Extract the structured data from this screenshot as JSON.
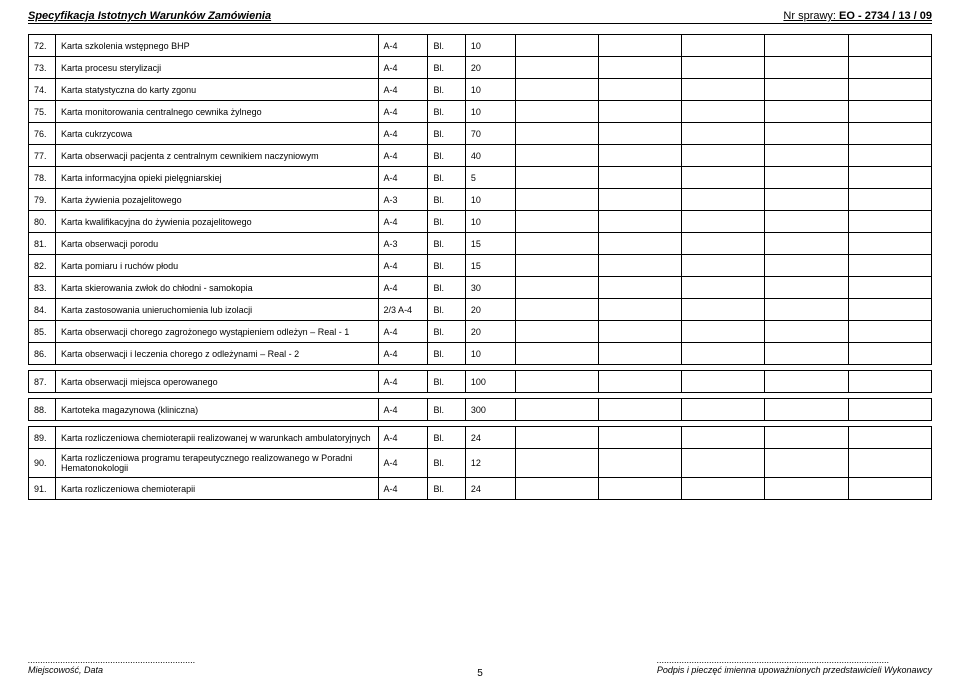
{
  "header": {
    "left": "Specyfikacja Istotnych Warunków Zamówienia",
    "right_label": "Nr sprawy:",
    "right_value": "EO - 2734 /  13  / 09"
  },
  "rows": [
    {
      "num": "72.",
      "desc": "Karta szkolenia wstępnego BHP",
      "fmt": "A-4",
      "bl": "Bl.",
      "qty": "10"
    },
    {
      "num": "73.",
      "desc": "Karta procesu sterylizacji",
      "fmt": "A-4",
      "bl": "Bl.",
      "qty": "20"
    },
    {
      "num": "74.",
      "desc": "Karta statystyczna do karty zgonu",
      "fmt": "A-4",
      "bl": "Bl.",
      "qty": "10"
    },
    {
      "num": "75.",
      "desc": "Karta monitorowania centralnego cewnika żylnego",
      "fmt": "A-4",
      "bl": "Bl.",
      "qty": "10"
    },
    {
      "num": "76.",
      "desc": "Karta cukrzycowa",
      "fmt": "A-4",
      "bl": "Bl.",
      "qty": "70"
    },
    {
      "num": "77.",
      "desc": "Karta obserwacji pacjenta z centralnym cewnikiem naczyniowym",
      "fmt": "A-4",
      "bl": "Bl.",
      "qty": "40"
    },
    {
      "num": "78.",
      "desc": "Karta informacyjna opieki pielęgniarskiej",
      "fmt": "A-4",
      "bl": "Bl.",
      "qty": "5"
    },
    {
      "num": "79.",
      "desc": "Karta żywienia pozajelitowego",
      "fmt": "A-3",
      "bl": "Bl.",
      "qty": "10"
    },
    {
      "num": "80.",
      "desc": "Karta kwalifikacyjna do żywienia pozajelitowego",
      "fmt": "A-4",
      "bl": "Bl.",
      "qty": "10"
    },
    {
      "num": "81.",
      "desc": "Karta obserwacji porodu",
      "fmt": "A-3",
      "bl": "Bl.",
      "qty": "15"
    },
    {
      "num": "82.",
      "desc": "Karta pomiaru i ruchów płodu",
      "fmt": "A-4",
      "bl": "Bl.",
      "qty": "15"
    },
    {
      "num": "83.",
      "desc": "Karta skierowania zwłok do chłodni - samokopia",
      "fmt": "A-4",
      "bl": "Bl.",
      "qty": "30"
    },
    {
      "num": "84.",
      "desc": "Karta zastosowania unieruchomienia lub izolacji",
      "fmt": "2/3 A-4",
      "bl": "Bl.",
      "qty": "20"
    },
    {
      "num": "85.",
      "desc": "Karta obserwacji chorego zagrożonego wystąpieniem odleżyn – Real - 1",
      "fmt": "A-4",
      "bl": "Bl.",
      "qty": "20"
    },
    {
      "num": "86.",
      "desc": "Karta obserwacji i leczenia chorego z odleżynami – Real - 2",
      "fmt": "A-4",
      "bl": "Bl.",
      "qty": "10"
    },
    {
      "num": "87.",
      "desc": "Karta obserwacji miejsca operowanego",
      "fmt": "A-4",
      "bl": "Bl.",
      "qty": "100"
    },
    {
      "num": "88.",
      "desc": "Kartoteka magazynowa (kliniczna)",
      "fmt": "A-4",
      "bl": "Bl.",
      "qty": "300"
    },
    {
      "num": "89.",
      "desc": "Karta rozliczeniowa chemioterapii realizowanej w warunkach ambulatoryjnych",
      "fmt": "A-4",
      "bl": "Bl.",
      "qty": "24"
    },
    {
      "num": "90.",
      "desc": "Karta rozliczeniowa programu terapeutycznego realizowanego w Poradni Hematonokologii",
      "fmt": "A-4",
      "bl": "Bl.",
      "qty": "12"
    },
    {
      "num": "91.",
      "desc": "Karta rozliczeniowa chemioterapii",
      "fmt": "A-4",
      "bl": "Bl.",
      "qty": "24"
    }
  ],
  "spacerAfter": [
    86,
    87,
    88
  ],
  "footer": {
    "left_dots": "...................................................................",
    "left_label": "Miejscowość, Data",
    "right_dots": ".............................................................................................",
    "right_label": "Podpis i pieczęć imienna upoważnionych  przedstawicieli Wykonawcy",
    "page": "5"
  }
}
